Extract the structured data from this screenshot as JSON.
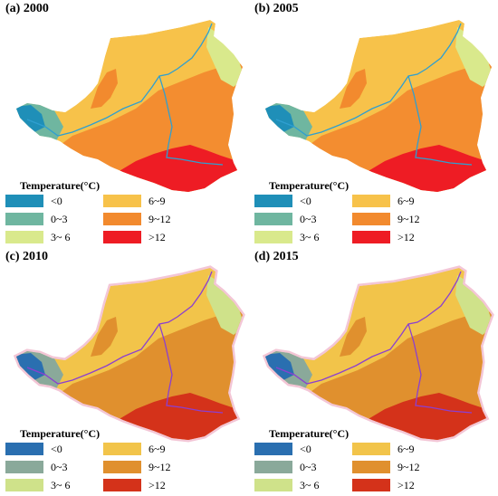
{
  "panels": [
    {
      "title": "(a) 2000",
      "variant": 0
    },
    {
      "title": "(b) 2005",
      "variant": 0
    },
    {
      "title": "(c) 2010",
      "variant": 1
    },
    {
      "title": "(d) 2015",
      "variant": 1
    }
  ],
  "legend": {
    "title": "Temperature(°C)",
    "classes": [
      {
        "label": "<0",
        "color_a": "#1f8fb8",
        "color_b": "#2a6fb0"
      },
      {
        "label": "0~3",
        "color_a": "#6fb6a0",
        "color_b": "#8aa99a"
      },
      {
        "label": "3~ 6",
        "color_a": "#d9e98c",
        "color_b": "#cfe28a"
      },
      {
        "label": "6~9",
        "color_a": "#f7c24a",
        "color_b": "#f2c44a"
      },
      {
        "label": "9~12",
        "color_a": "#f28a2e",
        "color_b": "#e0902e"
      },
      {
        "label": ">12",
        "color_a": "#ee1c24",
        "color_b": "#d4321a"
      }
    ]
  },
  "river_colors": [
    "#2f9fd0",
    "#8b3fd0"
  ]
}
